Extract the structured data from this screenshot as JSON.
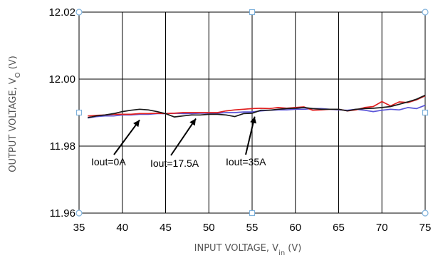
{
  "chart_data": {
    "type": "line",
    "title": "",
    "xlabel": {
      "main": "INPUT VOLTAGE, V",
      "sub": "in",
      "unit": " (V)"
    },
    "ylabel": {
      "main": "OUTPUT VOLTAGE, V",
      "sub": "O",
      "unit": " (V)"
    },
    "xlim": [
      35,
      75
    ],
    "ylim": [
      11.96,
      12.02
    ],
    "grid": true,
    "x_ticks": [
      "35",
      "40",
      "45",
      "50",
      "55",
      "60",
      "65",
      "70",
      "75"
    ],
    "y_ticks": [
      "12.02",
      "12.00",
      "11.98",
      "11.96"
    ],
    "colors": {
      "Iout=0A": "#5a55d8",
      "Iout=17.5A": "#e02020",
      "Iout=35A": "#1a1a1a",
      "grid": "#000000",
      "handle": "#7fb2dc"
    },
    "series": [
      {
        "name": "Iout=0A",
        "x": [
          36,
          37,
          38,
          39,
          40,
          41,
          42,
          43,
          44,
          45,
          46,
          47,
          48,
          49,
          50,
          51,
          52,
          53,
          54,
          55,
          56,
          57,
          58,
          59,
          60,
          61,
          62,
          63,
          64,
          65,
          66,
          67,
          68,
          69,
          70,
          71,
          72,
          73,
          74,
          75
        ],
        "y": [
          11.9884,
          11.9888,
          11.989,
          11.989,
          11.9893,
          11.9893,
          11.9895,
          11.9895,
          11.9897,
          11.9897,
          11.9898,
          11.9897,
          11.9897,
          11.9898,
          11.9898,
          11.9898,
          11.99,
          11.99,
          11.9902,
          11.9902,
          11.9905,
          11.9907,
          11.9908,
          11.9908,
          11.991,
          11.991,
          11.9912,
          11.9912,
          11.991,
          11.9908,
          11.9907,
          11.991,
          11.9907,
          11.9903,
          11.9907,
          11.991,
          11.9908,
          11.9915,
          11.9912,
          11.9922
        ]
      },
      {
        "name": "Iout=17.5A",
        "x": [
          36,
          37,
          38,
          39,
          40,
          41,
          42,
          43,
          44,
          45,
          46,
          47,
          48,
          49,
          50,
          51,
          52,
          53,
          54,
          55,
          56,
          57,
          58,
          59,
          60,
          61,
          62,
          63,
          64,
          65,
          66,
          67,
          68,
          69,
          70,
          71,
          72,
          73,
          74,
          75
        ],
        "y": [
          11.989,
          11.9892,
          11.9893,
          11.9895,
          11.9895,
          11.9895,
          11.9897,
          11.9897,
          11.9898,
          11.9897,
          11.9898,
          11.99,
          11.99,
          11.99,
          11.99,
          11.99,
          11.9905,
          11.9908,
          11.991,
          11.9912,
          11.9913,
          11.9912,
          11.9915,
          11.9913,
          11.9915,
          11.9917,
          11.9907,
          11.9908,
          11.991,
          11.991,
          11.9905,
          11.9908,
          11.9915,
          11.9918,
          11.9933,
          11.992,
          11.9932,
          11.993,
          11.9938,
          11.995
        ]
      },
      {
        "name": "Iout=35A",
        "x": [
          36,
          37,
          38,
          39,
          40,
          41,
          42,
          43,
          44,
          45,
          46,
          47,
          48,
          49,
          50,
          51,
          52,
          53,
          54,
          55,
          56,
          57,
          58,
          59,
          60,
          61,
          62,
          63,
          64,
          65,
          66,
          67,
          68,
          69,
          70,
          71,
          72,
          73,
          74,
          75
        ],
        "y": [
          11.9885,
          11.989,
          11.9893,
          11.9897,
          11.9903,
          11.9907,
          11.991,
          11.9908,
          11.9903,
          11.9897,
          11.9887,
          11.989,
          11.9893,
          11.9893,
          11.9895,
          11.9895,
          11.9893,
          11.9888,
          11.9897,
          11.9898,
          11.9907,
          11.9907,
          11.991,
          11.9912,
          11.9913,
          11.9915,
          11.9912,
          11.991,
          11.991,
          11.991,
          11.9905,
          11.991,
          11.9912,
          11.9913,
          11.9915,
          11.9918,
          11.9925,
          11.9932,
          11.994,
          11.9952
        ]
      }
    ],
    "annotations": [
      {
        "text": "Iout=0A",
        "arrow_to": [
          42,
          11.9893
        ]
      },
      {
        "text": "Iout=17.5A",
        "arrow_to": [
          48.5,
          11.9897
        ]
      },
      {
        "text": "Iout=35A",
        "arrow_to": [
          55.3,
          11.9903
        ]
      }
    ]
  }
}
